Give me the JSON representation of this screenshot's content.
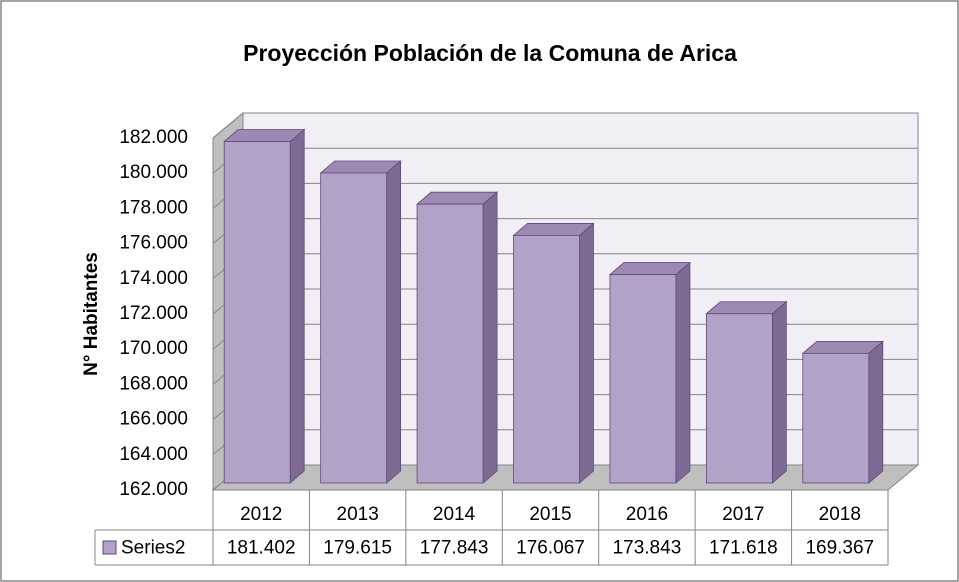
{
  "chart_data": {
    "type": "bar3d",
    "title": "Proyección Población de la Comuna de Arica",
    "y_label": "N° Habitantes",
    "categories": [
      "2012",
      "2013",
      "2014",
      "2015",
      "2016",
      "2017",
      "2018"
    ],
    "series": [
      {
        "name": "Series2",
        "color": "#b3a2c7",
        "side_color": "#7f6a96",
        "values": [
          181402,
          179615,
          177843,
          176067,
          173843,
          171618,
          169367
        ],
        "value_labels": [
          "181.402",
          "179.615",
          "177.843",
          "176.067",
          "173.843",
          "171.618",
          "169.367"
        ]
      }
    ],
    "ylim": [
      162000,
      182000
    ],
    "yticks": [
      {
        "value": 162000,
        "label": "162.000"
      },
      {
        "value": 164000,
        "label": "164.000"
      },
      {
        "value": 166000,
        "label": "166.000"
      },
      {
        "value": 168000,
        "label": "168.000"
      },
      {
        "value": 170000,
        "label": "170.000"
      },
      {
        "value": 172000,
        "label": "172.000"
      },
      {
        "value": 174000,
        "label": "174.000"
      },
      {
        "value": 176000,
        "label": "176.000"
      },
      {
        "value": 178000,
        "label": "178.000"
      },
      {
        "value": 180000,
        "label": "180.000"
      },
      {
        "value": 182000,
        "label": "182.000"
      }
    ],
    "grid": true
  }
}
